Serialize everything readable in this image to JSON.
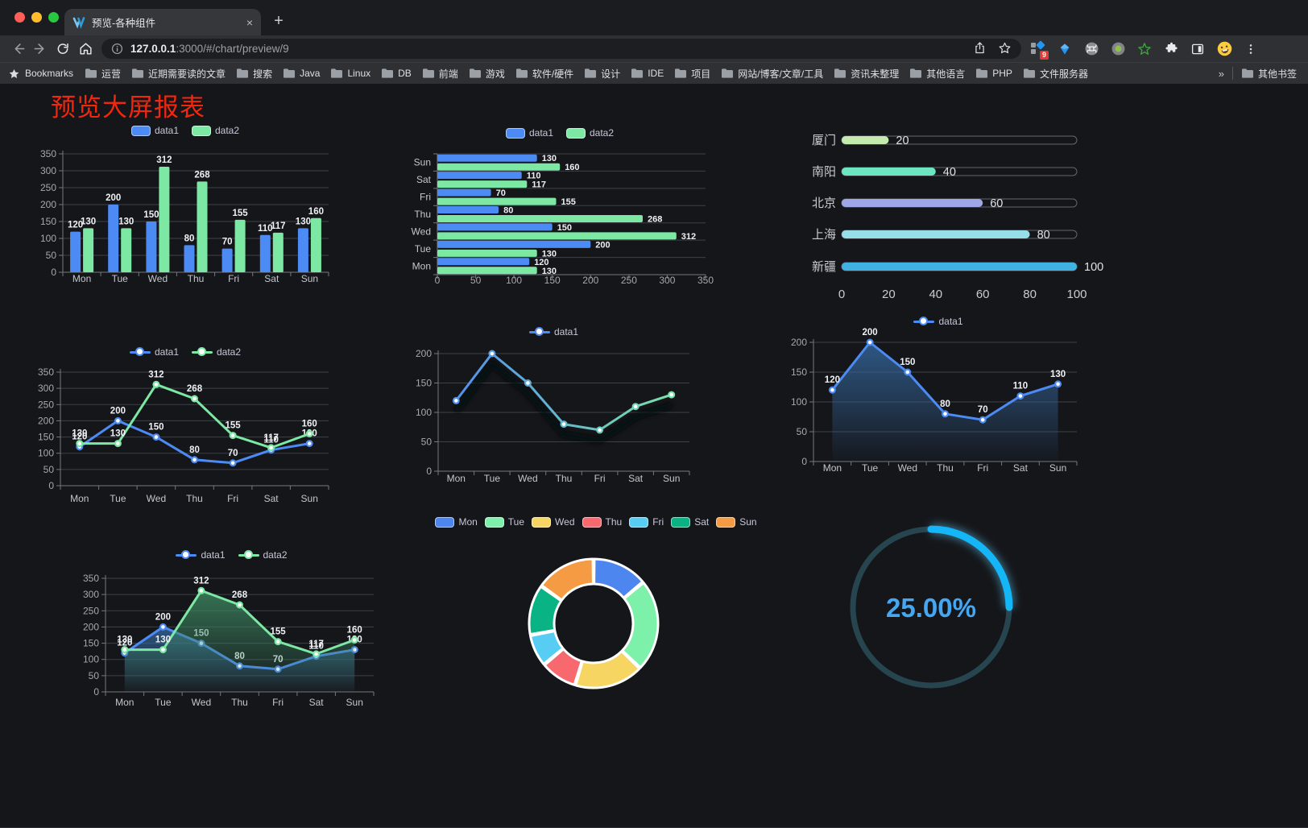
{
  "browser": {
    "tab_title": "预览-各种组件",
    "close_glyph": "×",
    "newtab_glyph": "+",
    "url_host": "127.0.0.1",
    "url_rest": ":3000/#/chart/preview/9",
    "bookmarks_label": "Bookmarks",
    "bookmarks": [
      "运营",
      "近期需要读的文章",
      "搜索",
      "Java",
      "Linux",
      "DB",
      "前端",
      "游戏",
      "软件/硬件",
      "设计",
      "IDE",
      "项目",
      "网站/博客/文章/工具",
      "资讯未整理",
      "其他语言",
      "PHP",
      "文件服务器"
    ],
    "overflow_glyph": "»",
    "other_bookmarks": "其他书签",
    "extensions_badge": "9"
  },
  "page": {
    "title": "预览大屏报表",
    "title_color": "#f1270e"
  },
  "chart_data": [
    {
      "id": "c1",
      "type": "bar",
      "legend_position": "top",
      "grid": true,
      "categories": [
        "Mon",
        "Tue",
        "Wed",
        "Thu",
        "Fri",
        "Sat",
        "Sun"
      ],
      "series": [
        {
          "name": "data1",
          "color": "#4d8bf4",
          "values": [
            120,
            200,
            150,
            80,
            70,
            110,
            130
          ]
        },
        {
          "name": "data2",
          "color": "#7ce8a4",
          "values": [
            130,
            130,
            312,
            268,
            155,
            117,
            160
          ]
        }
      ],
      "ylim": [
        0,
        350
      ],
      "ytick_step": 50,
      "value_labels": true
    },
    {
      "id": "c2",
      "type": "bar-horizontal",
      "legend_position": "top",
      "grid": true,
      "categories": [
        "Mon",
        "Tue",
        "Wed",
        "Thu",
        "Fri",
        "Sat",
        "Sun"
      ],
      "categories_display_top_to_bottom": [
        "Sun",
        "Sat",
        "Fri",
        "Thu",
        "Wed",
        "Tue",
        "Mon"
      ],
      "series": [
        {
          "name": "data1",
          "color": "#4d8bf4",
          "values": [
            120,
            200,
            150,
            80,
            70,
            110,
            130
          ]
        },
        {
          "name": "data2",
          "color": "#7ce8a4",
          "values": [
            130,
            130,
            312,
            268,
            155,
            117,
            160
          ]
        }
      ],
      "xlim": [
        0,
        350
      ],
      "xtick_step": 50,
      "value_labels": true
    },
    {
      "id": "c3",
      "type": "progress-bars",
      "items": [
        {
          "label": "厦门",
          "value": 20,
          "color": "#c4ebad"
        },
        {
          "label": "南阳",
          "value": 40,
          "color": "#6be6c1"
        },
        {
          "label": "北京",
          "value": 60,
          "color": "#a0a7e6"
        },
        {
          "label": "上海",
          "value": 80,
          "color": "#96dee8"
        },
        {
          "label": "新疆",
          "value": 100,
          "color": "#3fb1e3"
        }
      ],
      "xlim": [
        0,
        100
      ],
      "xticks": [
        0,
        20,
        40,
        60,
        80,
        100
      ]
    },
    {
      "id": "c4",
      "type": "line",
      "legend_position": "top",
      "grid": true,
      "categories": [
        "Mon",
        "Tue",
        "Wed",
        "Thu",
        "Fri",
        "Sat",
        "Sun"
      ],
      "series": [
        {
          "name": "data1",
          "color": "#4d8bf4",
          "values": [
            120,
            200,
            150,
            80,
            70,
            110,
            130
          ]
        },
        {
          "name": "data2",
          "color": "#7ce8a4",
          "values": [
            130,
            130,
            312,
            268,
            155,
            117,
            160
          ]
        }
      ],
      "ylim": [
        0,
        350
      ],
      "ytick_step": 50,
      "value_labels": true
    },
    {
      "id": "c5",
      "type": "line",
      "legend_position": "top",
      "grid": true,
      "categories": [
        "Mon",
        "Tue",
        "Wed",
        "Thu",
        "Fri",
        "Sat",
        "Sun"
      ],
      "series": [
        {
          "name": "data1",
          "gradient": [
            "#4d8bf4",
            "#7ce8a4"
          ],
          "values": [
            120,
            200,
            150,
            80,
            70,
            110,
            130
          ]
        }
      ],
      "ylim": [
        0,
        200
      ],
      "ytick_step": 50,
      "value_labels": false,
      "line_shadow": true
    },
    {
      "id": "c6",
      "type": "area",
      "legend_position": "top",
      "grid": true,
      "categories": [
        "Mon",
        "Tue",
        "Wed",
        "Thu",
        "Fri",
        "Sat",
        "Sun"
      ],
      "series": [
        {
          "name": "data1",
          "color": "#4d8bf4",
          "fill": "#35689f",
          "values": [
            120,
            200,
            150,
            80,
            70,
            110,
            130
          ]
        }
      ],
      "ylim": [
        0,
        200
      ],
      "ytick_step": 50,
      "value_labels": true
    },
    {
      "id": "c7",
      "type": "area",
      "legend_position": "top",
      "grid": true,
      "categories": [
        "Mon",
        "Tue",
        "Wed",
        "Thu",
        "Fri",
        "Sat",
        "Sun"
      ],
      "series": [
        {
          "name": "data1",
          "color": "#4d8bf4",
          "fill": "#35689f",
          "values": [
            120,
            200,
            150,
            80,
            70,
            110,
            130
          ]
        },
        {
          "name": "data2",
          "color": "#7ce8a4",
          "fill": "#3e8a63",
          "values": [
            130,
            130,
            312,
            268,
            155,
            117,
            160
          ]
        }
      ],
      "ylim": [
        0,
        350
      ],
      "ytick_step": 50,
      "value_labels": true
    },
    {
      "id": "c8",
      "type": "pie",
      "subtype": "donut",
      "legend_position": "top",
      "categories": [
        "Mon",
        "Tue",
        "Wed",
        "Thu",
        "Fri",
        "Sat",
        "Sun"
      ],
      "values": [
        120,
        200,
        150,
        80,
        70,
        110,
        130
      ],
      "colors": [
        "#4e86ef",
        "#7df0a9",
        "#f6d563",
        "#f8696f",
        "#57cdf4",
        "#09b384",
        "#f59b43"
      ],
      "border_color": "#ffffff"
    },
    {
      "id": "c9",
      "type": "gauge",
      "percent": 25,
      "label": "25.00%",
      "arc_color": "#14b6f8",
      "track_color": "#26454f",
      "text_color": "#45a6f1"
    }
  ]
}
